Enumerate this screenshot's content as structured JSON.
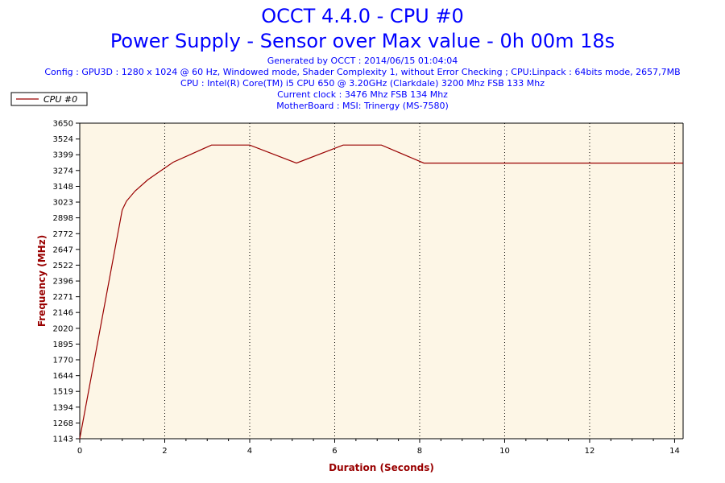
{
  "header": {
    "title": "OCCT 4.4.0 - CPU #0",
    "subtitle": "Power Supply - Sensor over Max value - 0h 00m 18s",
    "info_lines": [
      "Generated by OCCT : 2014/06/15 01:04:04",
      "Config : GPU3D : 1280 x 1024 @ 60 Hz, Windowed mode, Shader Complexity 1, without Error Checking ; CPU:Linpack : 64bits mode, 2657,7MB",
      "CPU : Intel(R) Core(TM) i5 CPU 650 @ 3.20GHz (Clarkdale) 3200 Mhz FSB 133 Mhz",
      "Current clock : 3476 Mhz FSB 134 Mhz",
      "MotherBoard : MSI: Trinergy (MS-7580)"
    ]
  },
  "colors": {
    "title": "#0000ff",
    "axis_label": "#990000",
    "series": "#990000",
    "plot_bg": "#fdf6e6",
    "grid": "#000000"
  },
  "chart_data": {
    "type": "line",
    "title": "",
    "xlabel": "Duration (Seconds)",
    "ylabel": "Frequency (MHz)",
    "xlim": [
      0,
      14.2
    ],
    "ylim": [
      1143,
      3650
    ],
    "xticks": [
      0,
      2,
      4,
      6,
      8,
      10,
      12,
      14
    ],
    "yticks": [
      1143,
      1268,
      1394,
      1519,
      1644,
      1770,
      1895,
      2020,
      2146,
      2271,
      2396,
      2522,
      2647,
      2772,
      2898,
      3023,
      3148,
      3274,
      3399,
      3524,
      3650
    ],
    "grid": "vertical dotted",
    "legend_position": "top-left outside",
    "series": [
      {
        "name": "CPU #0",
        "x": [
          0,
          1.0,
          1.1,
          1.3,
          1.6,
          1.9,
          2.2,
          2.6,
          3.1,
          4.0,
          5.1,
          6.2,
          7.1,
          8.1,
          9.0,
          10.0,
          11.0,
          12.0,
          13.0,
          14.2
        ],
        "y": [
          1143,
          2960,
          3030,
          3110,
          3200,
          3270,
          3340,
          3400,
          3476,
          3476,
          3333,
          3476,
          3476,
          3333,
          3333,
          3333,
          3333,
          3333,
          3333,
          3333
        ]
      }
    ]
  }
}
